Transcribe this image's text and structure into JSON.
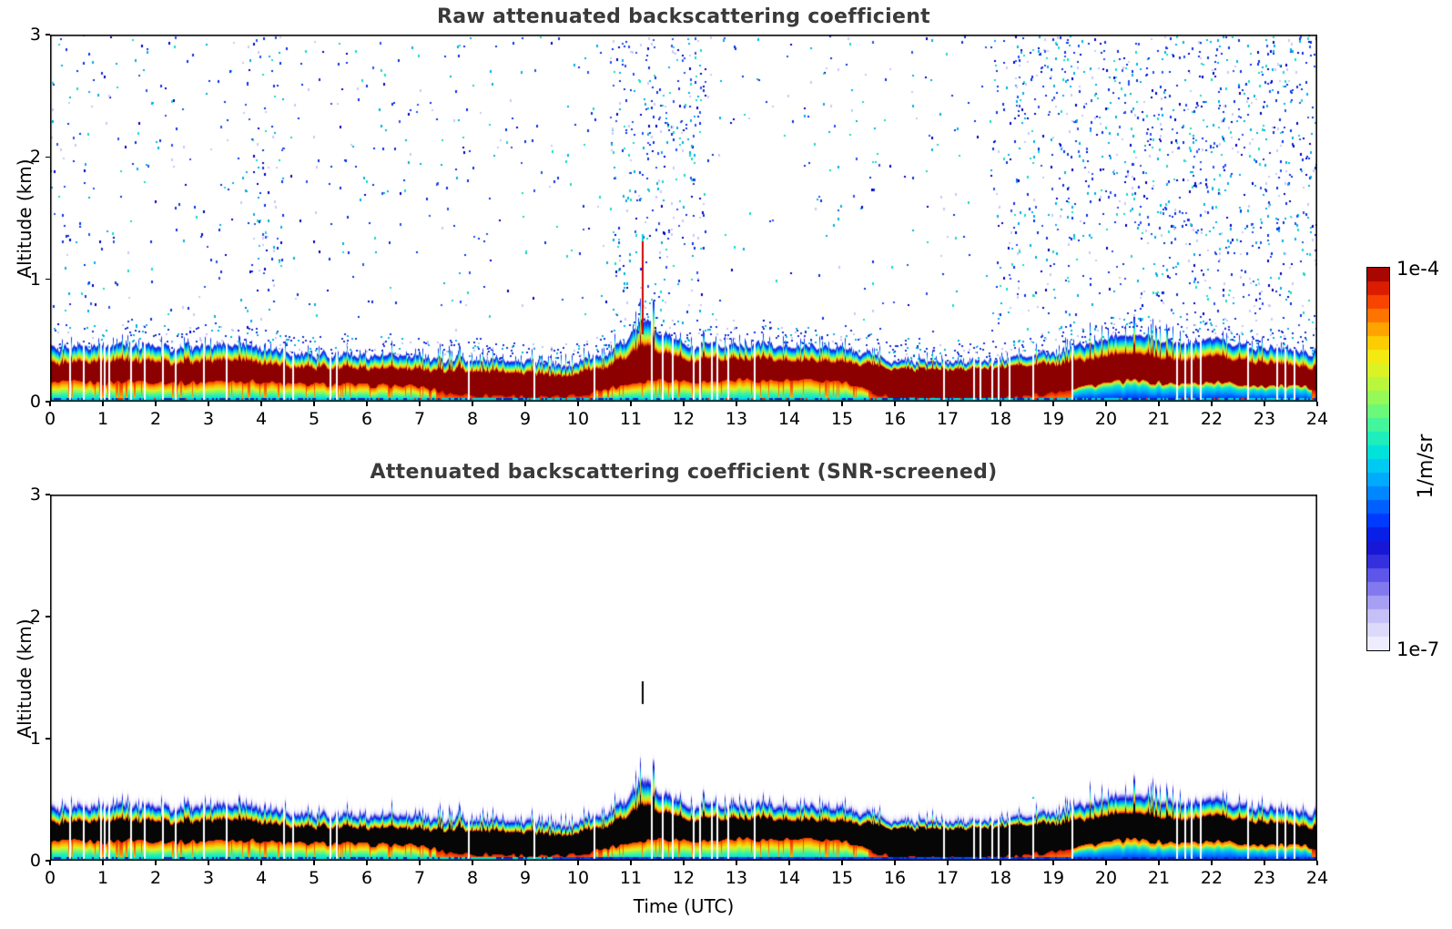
{
  "chart_data": {
    "type": "heatmap",
    "x_name": "Time (UTC)",
    "x_range": [
      0,
      24
    ],
    "y_name": "Altitude (km)",
    "y_range": [
      0,
      3
    ],
    "value_name": "attenuated backscattering coefficient",
    "value_unit": "1/m/sr",
    "value_range_labels": [
      "1e-7",
      "1e-4"
    ],
    "panels": [
      {
        "title": "Raw attenuated backscattering coefficient",
        "ylabel": "Altitude (km)",
        "xlabel": "",
        "style": "raw",
        "x_ticks": [
          0,
          1,
          2,
          3,
          4,
          5,
          6,
          7,
          8,
          9,
          10,
          11,
          12,
          13,
          14,
          15,
          16,
          17,
          18,
          19,
          20,
          21,
          22,
          23,
          24
        ],
        "y_ticks": [
          0,
          1,
          2,
          3
        ]
      },
      {
        "title": "Attenuated backscattering coefficient (SNR-screened)",
        "ylabel": "Altitude (km)",
        "xlabel": "Time (UTC)",
        "style": "screened",
        "x_ticks": [
          0,
          1,
          2,
          3,
          4,
          5,
          6,
          7,
          8,
          9,
          10,
          11,
          12,
          13,
          14,
          15,
          16,
          17,
          18,
          19,
          20,
          21,
          22,
          23,
          24
        ],
        "y_ticks": [
          0,
          1,
          2,
          3
        ]
      }
    ],
    "colorbar": {
      "max_label": "1e-4",
      "min_label": "1e-7",
      "unit": "1/m/sr",
      "steps": 28,
      "stops": [
        {
          "v": 0.0,
          "c": "#f7f7fe"
        },
        {
          "v": 0.05,
          "c": "#dedcfa"
        },
        {
          "v": 0.1,
          "c": "#beb9f6"
        },
        {
          "v": 0.15,
          "c": "#8d84f0"
        },
        {
          "v": 0.2,
          "c": "#5a51e8"
        },
        {
          "v": 0.24,
          "c": "#2b28dc"
        },
        {
          "v": 0.28,
          "c": "#0f0fd2"
        },
        {
          "v": 0.33,
          "c": "#0030ff"
        },
        {
          "v": 0.38,
          "c": "#0064ff"
        },
        {
          "v": 0.43,
          "c": "#009cff"
        },
        {
          "v": 0.48,
          "c": "#00c8f5"
        },
        {
          "v": 0.52,
          "c": "#00e4d8"
        },
        {
          "v": 0.57,
          "c": "#2df2ae"
        },
        {
          "v": 0.62,
          "c": "#66f97e"
        },
        {
          "v": 0.67,
          "c": "#a0f94e"
        },
        {
          "v": 0.72,
          "c": "#d2f52b"
        },
        {
          "v": 0.77,
          "c": "#f5e911"
        },
        {
          "v": 0.81,
          "c": "#ffc800"
        },
        {
          "v": 0.85,
          "c": "#ff9600"
        },
        {
          "v": 0.89,
          "c": "#ff5f00"
        },
        {
          "v": 0.93,
          "c": "#f22b00"
        },
        {
          "v": 0.965,
          "c": "#c30b00"
        },
        {
          "v": 1.0,
          "c": "#8b0000"
        }
      ]
    },
    "series": {
      "time_h": [
        0,
        0.5,
        1,
        1.5,
        2,
        2.5,
        3,
        3.5,
        4,
        4.5,
        5,
        5.5,
        6,
        6.5,
        7,
        7.5,
        8,
        8.5,
        9,
        9.5,
        10,
        10.5,
        11,
        11.5,
        12,
        12.5,
        13,
        13.5,
        14,
        14.5,
        15,
        15.5,
        16,
        16.5,
        17,
        17.5,
        18,
        18.5,
        19,
        19.5,
        20,
        20.5,
        21,
        21.5,
        22,
        22.5,
        23,
        23.5,
        24
      ],
      "mixed_layer_top_km": [
        0.42,
        0.44,
        0.43,
        0.45,
        0.44,
        0.43,
        0.45,
        0.46,
        0.44,
        0.4,
        0.38,
        0.38,
        0.37,
        0.36,
        0.36,
        0.35,
        0.34,
        0.33,
        0.32,
        0.28,
        0.3,
        0.38,
        0.52,
        0.55,
        0.46,
        0.44,
        0.46,
        0.45,
        0.44,
        0.44,
        0.43,
        0.38,
        0.33,
        0.32,
        0.32,
        0.33,
        0.34,
        0.35,
        0.38,
        0.45,
        0.52,
        0.55,
        0.5,
        0.48,
        0.52,
        0.46,
        0.44,
        0.42,
        0.4
      ],
      "strong_layer_top_km": [
        0.3,
        0.32,
        0.31,
        0.33,
        0.32,
        0.31,
        0.33,
        0.34,
        0.32,
        0.29,
        0.28,
        0.28,
        0.27,
        0.26,
        0.26,
        0.26,
        0.25,
        0.24,
        0.23,
        0.2,
        0.22,
        0.28,
        0.38,
        0.4,
        0.34,
        0.33,
        0.35,
        0.34,
        0.33,
        0.33,
        0.32,
        0.3,
        0.27,
        0.26,
        0.26,
        0.27,
        0.28,
        0.28,
        0.3,
        0.33,
        0.38,
        0.4,
        0.36,
        0.34,
        0.38,
        0.34,
        0.32,
        0.3,
        0.28
      ],
      "strong_layer_bottom_km": [
        0.15,
        0.16,
        0.15,
        0.17,
        0.16,
        0.15,
        0.16,
        0.17,
        0.16,
        0.14,
        0.14,
        0.14,
        0.13,
        0.13,
        0.12,
        0.07,
        0.05,
        0.05,
        0.04,
        0.03,
        0.05,
        0.1,
        0.15,
        0.18,
        0.17,
        0.16,
        0.18,
        0.17,
        0.17,
        0.17,
        0.16,
        0.08,
        0.03,
        0.02,
        0.02,
        0.02,
        0.03,
        0.04,
        0.08,
        0.12,
        0.15,
        0.17,
        0.15,
        0.14,
        0.16,
        0.14,
        0.13,
        0.12,
        0.11
      ]
    },
    "data_gaps_h": [
      0.37,
      0.62,
      0.95,
      1.02,
      1.1,
      1.52,
      1.78,
      2.12,
      2.37,
      2.9,
      3.32,
      4.42,
      4.58,
      5.3,
      5.42,
      7.92,
      9.15,
      10.3,
      11.38,
      11.58,
      11.78,
      12.18,
      12.3,
      12.52,
      12.62,
      12.82,
      13.32,
      16.92,
      17.48,
      17.6,
      17.82,
      17.95,
      18.15,
      18.6,
      19.35,
      21.32,
      21.48,
      21.6,
      21.78,
      22.68,
      23.22,
      23.38,
      23.55
    ],
    "noise_bands": [
      {
        "from_h": 0.0,
        "to_h": 0.8,
        "weight": 1.4
      },
      {
        "from_h": 0.8,
        "to_h": 3.6,
        "weight": 0.6
      },
      {
        "from_h": 3.6,
        "to_h": 4.4,
        "weight": 2.2
      },
      {
        "from_h": 4.4,
        "to_h": 10.6,
        "weight": 0.55
      },
      {
        "from_h": 10.6,
        "to_h": 12.4,
        "weight": 3.0
      },
      {
        "from_h": 12.4,
        "to_h": 17.8,
        "weight": 0.5
      },
      {
        "from_h": 17.8,
        "to_h": 19.2,
        "weight": 2.2
      },
      {
        "from_h": 19.2,
        "to_h": 21.0,
        "weight": 2.6
      },
      {
        "from_h": 21.0,
        "to_h": 24.0,
        "weight": 3.2
      }
    ],
    "precip_spike": {
      "time_h": 11.2,
      "raw_top_km": 1.37,
      "raw_bottom_km": 0.55,
      "screened_top_km": 1.47,
      "screened_bottom_km": 1.28
    }
  }
}
